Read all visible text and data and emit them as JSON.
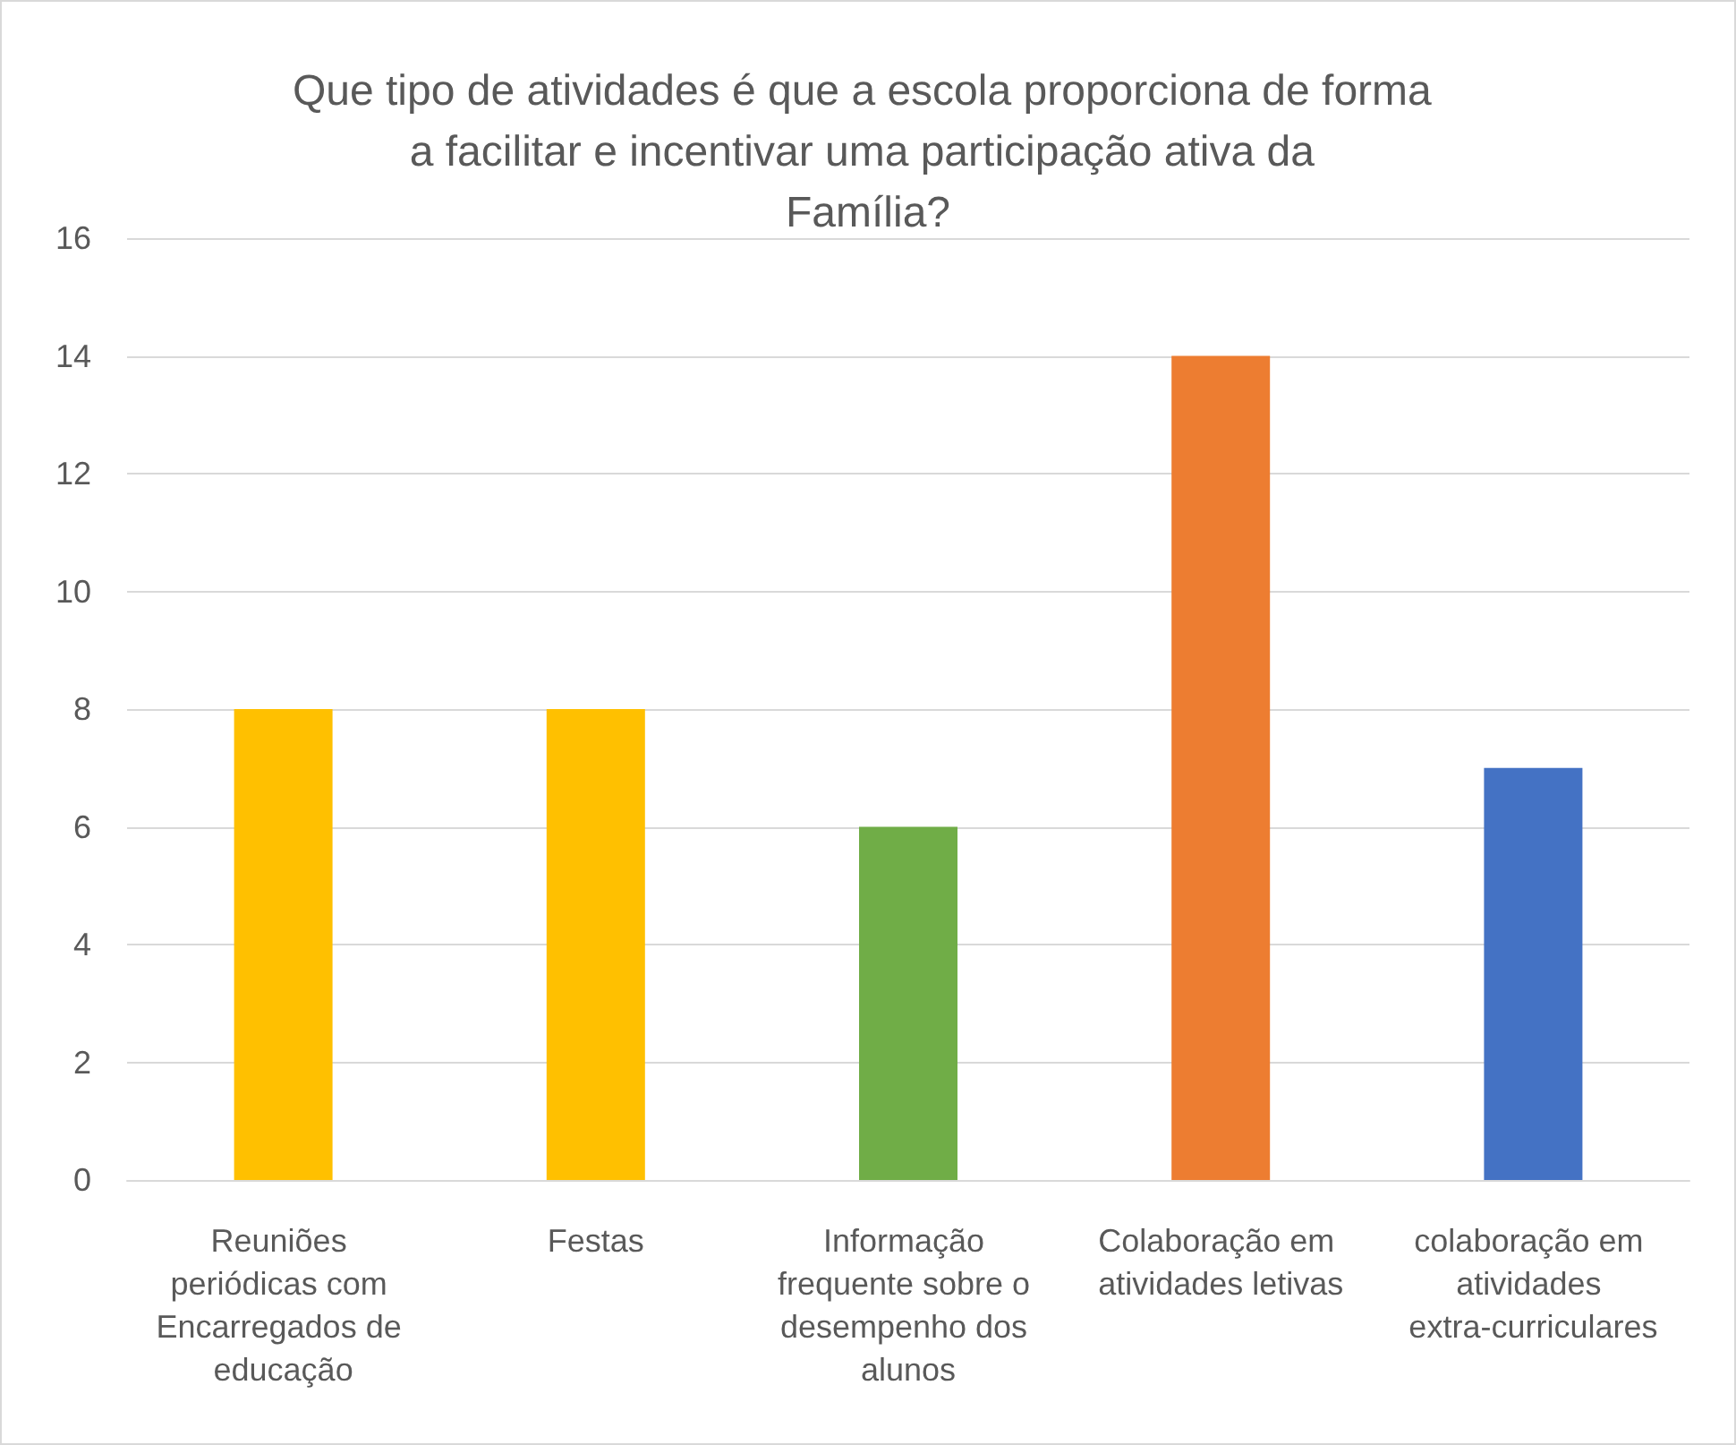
{
  "chart_data": {
    "type": "bar",
    "title": "Que tipo de atividades é que a escola proporciona de forma a facilitar e incentivar uma participação ativa da Família?",
    "categories": [
      "Reuniões periódicas com Encarregados de educação",
      "Festas",
      "Informação frequente sobre o desempenho dos alunos",
      "Colaboração em atividades letivas",
      "colaboração em atividades extra-curriculares"
    ],
    "values": [
      8,
      8,
      6,
      14,
      7
    ],
    "colors": [
      "#ffc000",
      "#ffc000",
      "#70ad47",
      "#ed7d31",
      "#4472c4"
    ],
    "ylim": [
      0,
      16
    ],
    "yticks": [
      0,
      2,
      4,
      6,
      8,
      10,
      12,
      14,
      16
    ],
    "grid": "y"
  }
}
